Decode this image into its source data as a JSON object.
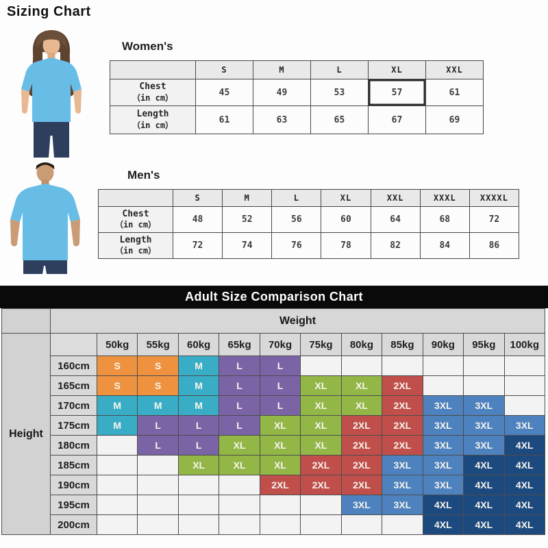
{
  "title": "Sizing Chart",
  "womens": {
    "label": "Women's",
    "sizes": [
      "S",
      "M",
      "L",
      "XL",
      "XXL"
    ],
    "rows": [
      {
        "label": "Chest",
        "unit": "（in cm）",
        "values": [
          "45",
          "49",
          "53",
          "57",
          "61"
        ]
      },
      {
        "label": "Length",
        "unit": "（in cm）",
        "values": [
          "61",
          "63",
          "65",
          "67",
          "69"
        ]
      }
    ],
    "highlight": {
      "row": 0,
      "col": 3
    }
  },
  "mens": {
    "label": "Men's",
    "sizes": [
      "S",
      "M",
      "L",
      "XL",
      "XXL",
      "XXXL",
      "XXXXL"
    ],
    "rows": [
      {
        "label": "Chest",
        "unit": "（in cm）",
        "values": [
          "48",
          "52",
          "56",
          "60",
          "64",
          "68",
          "72"
        ]
      },
      {
        "label": "Length",
        "unit": "（in cm）",
        "values": [
          "72",
          "74",
          "76",
          "78",
          "82",
          "84",
          "86"
        ]
      }
    ]
  },
  "comparison": {
    "title": "Adult Size Comparison Chart",
    "weight_label": "Weight",
    "height_label": "Height",
    "weights": [
      "50kg",
      "55kg",
      "60kg",
      "65kg",
      "70kg",
      "75kg",
      "80kg",
      "85kg",
      "90kg",
      "95kg",
      "100kg"
    ],
    "heights": [
      "160cm",
      "165cm",
      "170cm",
      "175cm",
      "180cm",
      "185cm",
      "190cm",
      "195cm",
      "200cm"
    ],
    "matrix": [
      [
        "S",
        "S",
        "M",
        "L",
        "L",
        "",
        "",
        "",
        "",
        "",
        ""
      ],
      [
        "S",
        "S",
        "M",
        "L",
        "L",
        "XL",
        "XL",
        "2XL",
        "",
        "",
        ""
      ],
      [
        "M",
        "M",
        "M",
        "L",
        "L",
        "XL",
        "XL",
        "2XL",
        "3XL",
        "3XL",
        ""
      ],
      [
        "M",
        "L",
        "L",
        "L",
        "XL",
        "XL",
        "2XL",
        "2XL",
        "3XL",
        "3XL",
        "3XL"
      ],
      [
        "",
        "L",
        "L",
        "XL",
        "XL",
        "XL",
        "2XL",
        "2XL",
        "3XL",
        "3XL",
        "4XL"
      ],
      [
        "",
        "",
        "XL",
        "XL",
        "XL",
        "2XL",
        "2XL",
        "3XL",
        "3XL",
        "4XL",
        "4XL"
      ],
      [
        "",
        "",
        "",
        "",
        "2XL",
        "2XL",
        "2XL",
        "3XL",
        "3XL",
        "4XL",
        "4XL"
      ],
      [
        "",
        "",
        "",
        "",
        "",
        "",
        "3XL",
        "3XL",
        "4XL",
        "4XL",
        "4XL"
      ],
      [
        "",
        "",
        "",
        "",
        "",
        "",
        "",
        "",
        "4XL",
        "4XL",
        "4XL"
      ]
    ],
    "size_colors": {
      "S": "#ef9240",
      "M": "#3aadc6",
      "L": "#7a64a6",
      "XL": "#92b747",
      "2XL": "#c04f4b",
      "3XL": "#4d82bf",
      "4XL": "#1d4a7e"
    },
    "header_bg": "#0a0a0a",
    "header_text": "#ffffff"
  },
  "photos": {
    "shirt_color": "#68bde6",
    "jeans_color": "#2e3f5e"
  }
}
